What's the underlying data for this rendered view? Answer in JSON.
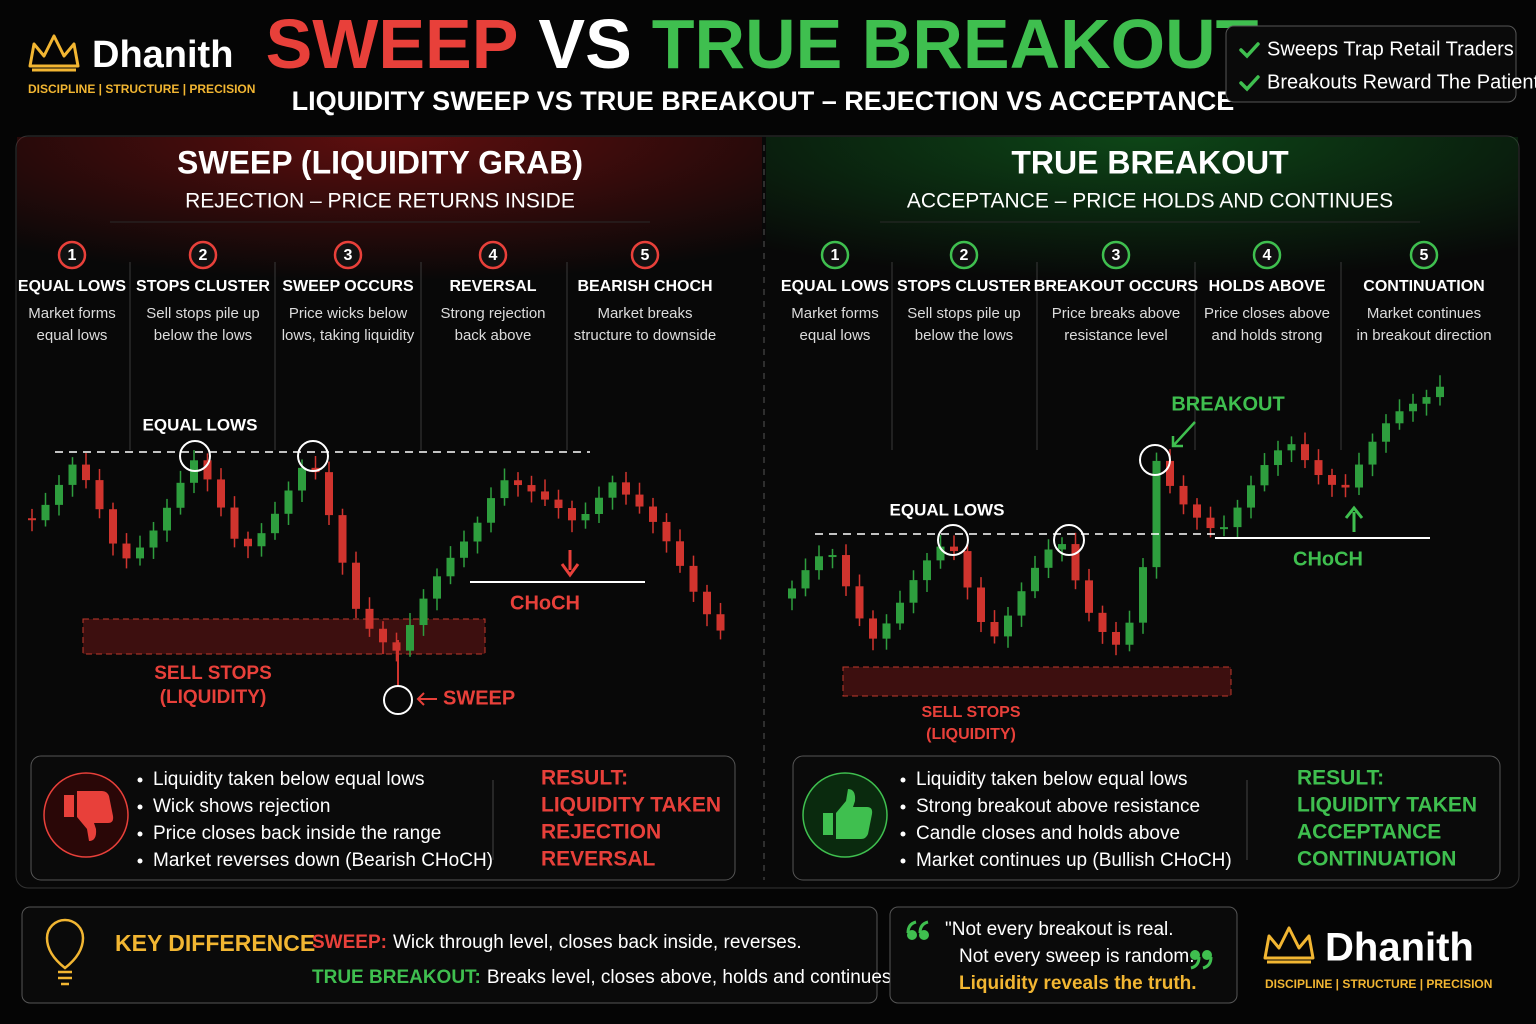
{
  "brand": {
    "name": "Dhanith",
    "tagline": "DISCIPLINE | STRUCTURE | PRECISION"
  },
  "header": {
    "title_part1": "SWEEP",
    "title_part2": "VS",
    "title_part3": "TRUE BREAKOUT",
    "subtitle": "LIQUIDITY SWEEP VS TRUE BREAKOUT – REJECTION VS ACCEPTANCE"
  },
  "checklist": [
    "Sweeps Trap Retail Traders",
    "Breakouts Reward The Patient"
  ],
  "panels": [
    {
      "title": "SWEEP (LIQUIDITY GRAB)",
      "subtitle": "REJECTION – PRICE RETURNS INSIDE",
      "steps": [
        {
          "number": "1",
          "title": "EQUAL LOWS",
          "desc": [
            "Market forms",
            "equal lows"
          ]
        },
        {
          "number": "2",
          "title": "STOPS CLUSTER",
          "desc": [
            "Sell stops pile up",
            "below the lows"
          ]
        },
        {
          "number": "3",
          "title": "SWEEP OCCURS",
          "desc": [
            "Price wicks below",
            "lows, taking liquidity"
          ]
        },
        {
          "number": "4",
          "title": "REVERSAL",
          "desc": [
            "Strong rejection",
            "back above"
          ]
        },
        {
          "number": "5",
          "title": "BEARISH CHOCH",
          "desc": [
            "Market breaks",
            "structure to downside"
          ]
        }
      ],
      "chart_labels": {
        "equal_lows": "EQUAL LOWS",
        "sell_stops": "SELL STOPS",
        "liquidity": "(LIQUIDITY)",
        "sweep": "SWEEP",
        "choch": "CHoCH"
      },
      "bullets": [
        "Liquidity taken below equal lows",
        "Wick shows rejection",
        "Price closes back inside the range",
        "Market reverses down (Bearish CHoCH)"
      ],
      "result_label": "RESULT:",
      "results": [
        "LIQUIDITY TAKEN",
        "REJECTION",
        "REVERSAL"
      ]
    },
    {
      "title": "TRUE BREAKOUT",
      "subtitle": "ACCEPTANCE – PRICE HOLDS AND CONTINUES",
      "steps": [
        {
          "number": "1",
          "title": "EQUAL LOWS",
          "desc": [
            "Market forms",
            "equal lows"
          ]
        },
        {
          "number": "2",
          "title": "STOPS CLUSTER",
          "desc": [
            "Sell stops pile up",
            "below the lows"
          ]
        },
        {
          "number": "3",
          "title": "BREAKOUT OCCURS",
          "desc": [
            "Price breaks above",
            "resistance level"
          ]
        },
        {
          "number": "4",
          "title": "HOLDS ABOVE",
          "desc": [
            "Price closes above",
            "and holds strong"
          ]
        },
        {
          "number": "5",
          "title": "CONTINUATION",
          "desc": [
            "Market continues",
            "in breakout direction"
          ]
        }
      ],
      "chart_labels": {
        "breakout": "BREAKOUT",
        "equal_lows": "EQUAL LOWS",
        "choch": "CHoCH",
        "sell_stops": "SELL STOPS",
        "liquidity": "(LIQUIDITY)"
      },
      "bullets": [
        "Liquidity taken below equal lows",
        "Strong breakout above resistance",
        "Candle closes and holds above",
        "Market continues up (Bullish CHoCH)"
      ],
      "result_label": "RESULT:",
      "results": [
        "LIQUIDITY TAKEN",
        "ACCEPTANCE",
        "CONTINUATION"
      ]
    }
  ],
  "key_difference": {
    "label": "KEY DIFFERENCE",
    "items": [
      {
        "term": "SWEEP:",
        "text": "Wick through level, closes back inside, reverses."
      },
      {
        "term": "TRUE BREAKOUT:",
        "text": "Breaks level, closes above, holds and continues."
      }
    ]
  },
  "quote": {
    "lines": [
      "\"Not every breakout is real.",
      "Not every sweep is random."
    ],
    "emphasis": "Liquidity reveals the truth."
  }
}
